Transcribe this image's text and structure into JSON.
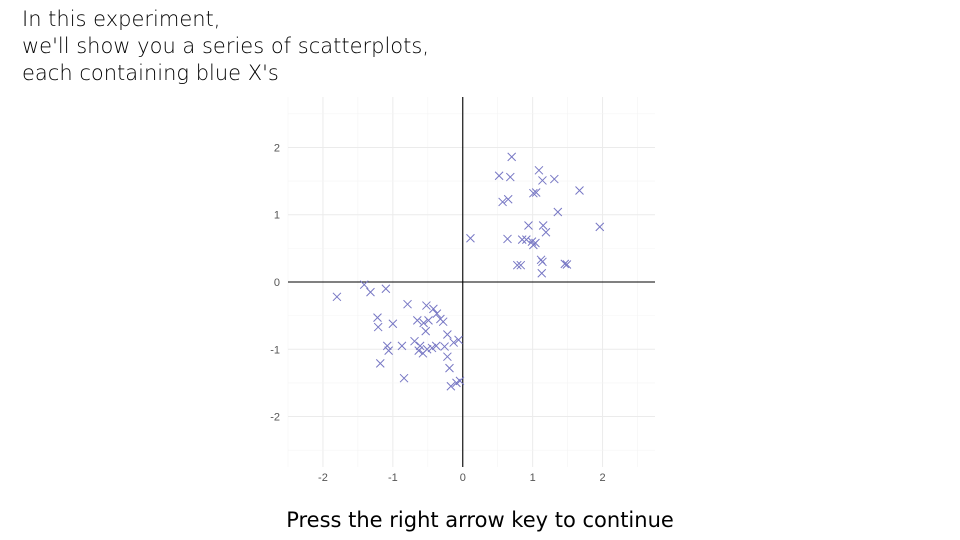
{
  "intro": {
    "lines": [
      "In this experiment,",
      "we'll show you a series of scatterplots,",
      "each containing blue X's"
    ]
  },
  "footer": {
    "instruction": "Press the right arrow key to continue"
  },
  "chart_data": {
    "type": "scatter",
    "title": "",
    "xlabel": "",
    "ylabel": "",
    "xlim": [
      -2.5,
      2.75
    ],
    "ylim": [
      -2.75,
      2.75
    ],
    "x_ticks": [
      -2,
      -1,
      0,
      1,
      2
    ],
    "y_ticks": [
      -2,
      -1,
      0,
      1,
      2
    ],
    "x_tick_labels": [
      "-2",
      "-1",
      "0",
      "1",
      "2"
    ],
    "y_tick_labels": [
      "-2",
      "-1",
      "0",
      "1",
      "2"
    ],
    "grid": true,
    "zero_axes": true,
    "marker": "x",
    "marker_color": "#7777c4",
    "points": [
      [
        0.7,
        1.86
      ],
      [
        0.52,
        1.58
      ],
      [
        0.68,
        1.56
      ],
      [
        1.09,
        1.66
      ],
      [
        1.14,
        1.51
      ],
      [
        1.31,
        1.53
      ],
      [
        1.67,
        1.36
      ],
      [
        1.01,
        1.32
      ],
      [
        1.05,
        1.33
      ],
      [
        0.57,
        1.19
      ],
      [
        0.65,
        1.23
      ],
      [
        1.36,
        1.04
      ],
      [
        1.96,
        0.82
      ],
      [
        0.94,
        0.84
      ],
      [
        1.15,
        0.84
      ],
      [
        1.19,
        0.74
      ],
      [
        0.11,
        0.65
      ],
      [
        0.64,
        0.64
      ],
      [
        0.85,
        0.63
      ],
      [
        0.91,
        0.63
      ],
      [
        0.99,
        0.6
      ],
      [
        1.04,
        0.58
      ],
      [
        1.01,
        0.55
      ],
      [
        1.12,
        0.33
      ],
      [
        1.14,
        0.3
      ],
      [
        0.78,
        0.25
      ],
      [
        0.83,
        0.25
      ],
      [
        1.13,
        0.13
      ],
      [
        1.46,
        0.27
      ],
      [
        1.49,
        0.26
      ],
      [
        -1.8,
        -0.22
      ],
      [
        -1.41,
        -0.04
      ],
      [
        -1.32,
        -0.15
      ],
      [
        -1.1,
        -0.1
      ],
      [
        -0.79,
        -0.33
      ],
      [
        -0.52,
        -0.35
      ],
      [
        -0.42,
        -0.4
      ],
      [
        -0.37,
        -0.47
      ],
      [
        -1.22,
        -0.53
      ],
      [
        -1.21,
        -0.67
      ],
      [
        -1.0,
        -0.62
      ],
      [
        -0.65,
        -0.57
      ],
      [
        -0.56,
        -0.61
      ],
      [
        -0.49,
        -0.57
      ],
      [
        -0.32,
        -0.55
      ],
      [
        -0.28,
        -0.59
      ],
      [
        -0.53,
        -0.73
      ],
      [
        -0.22,
        -0.78
      ],
      [
        -0.69,
        -0.88
      ],
      [
        -0.61,
        -0.95
      ],
      [
        -0.44,
        -0.98
      ],
      [
        -0.38,
        -0.95
      ],
      [
        -0.26,
        -0.96
      ],
      [
        -0.13,
        -0.9
      ],
      [
        -0.06,
        -0.86
      ],
      [
        -1.08,
        -0.95
      ],
      [
        -1.06,
        -1.02
      ],
      [
        -0.87,
        -0.95
      ],
      [
        -0.63,
        -1.02
      ],
      [
        -0.57,
        -1.06
      ],
      [
        -0.51,
        -1.0
      ],
      [
        -0.22,
        -1.11
      ],
      [
        -1.18,
        -1.21
      ],
      [
        -0.19,
        -1.28
      ],
      [
        -0.84,
        -1.43
      ],
      [
        -0.04,
        -1.47
      ],
      [
        -0.09,
        -1.5
      ],
      [
        -0.17,
        -1.55
      ]
    ]
  }
}
